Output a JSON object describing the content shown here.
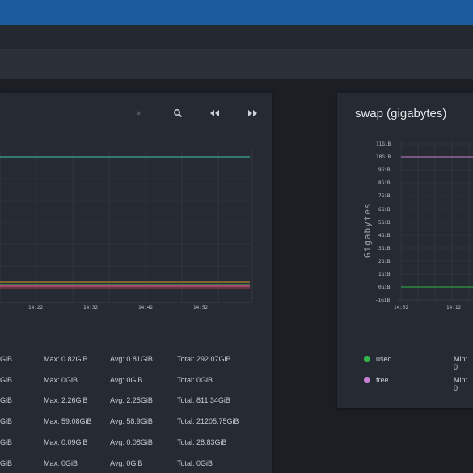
{
  "left_panel": {
    "x_ticks": [
      "14:22",
      "14:32",
      "14:42",
      "14:52"
    ],
    "stats": [
      {
        "first": "GiB",
        "max": "Max: 0.82GiB",
        "avg": "Avg: 0.81GiB",
        "total": "Total: 292.07GiB"
      },
      {
        "first": "GiB",
        "max": "Max: 0GiB",
        "avg": "Avg: 0GiB",
        "total": "Total: 0GiB"
      },
      {
        "first": "GiB",
        "max": "Max: 2.26GiB",
        "avg": "Avg: 2.25GiB",
        "total": "Total: 811.34GiB"
      },
      {
        "first": "GiB",
        "max": "Max: 59.08GiB",
        "avg": "Avg: 58.9GiB",
        "total": "Total: 21205.75GiB"
      },
      {
        "first": "GiB",
        "max": "Max: 0.09GiB",
        "avg": "Avg: 0.08GiB",
        "total": "Total: 28.83GiB"
      },
      {
        "first": "GiB",
        "max": "Max: 0GiB",
        "avg": "Avg: 0GiB",
        "total": "Total: 0GiB"
      }
    ],
    "colors": {
      "teal": "#3ec9a7",
      "orange": "#d8a02c",
      "green": "#5cc25a",
      "pink": "#e45b9d",
      "grid_red": "#5a3a3a",
      "grid": "#3a4048"
    }
  },
  "right_panel": {
    "title": "swap (gigabytes)",
    "ylabel": "Gigabytes",
    "y_ticks": [
      "11GiB",
      "10GiB",
      "9GiB",
      "8GiB",
      "7GiB",
      "6GiB",
      "5GiB",
      "4GiB",
      "3GiB",
      "2GiB",
      "1GiB",
      "0GiB",
      "-1GiB"
    ],
    "x_ticks": [
      "14:02",
      "14:12"
    ],
    "legend": [
      {
        "name": "used",
        "color": "#33b54a",
        "min": "Min: 0"
      },
      {
        "name": "free",
        "color": "#c97fd3",
        "min": "Min: 0"
      }
    ]
  },
  "chart_data": [
    {
      "type": "line",
      "x": [
        "14:22",
        "14:32",
        "14:42",
        "14:52"
      ],
      "series": [
        {
          "values": [
            0.81,
            0.81,
            0.81,
            0.81
          ]
        },
        {
          "values": [
            0,
            0,
            0,
            0
          ]
        },
        {
          "values": [
            2.25,
            2.25,
            2.25,
            2.25
          ]
        },
        {
          "values": [
            58.9,
            58.9,
            58.9,
            58.9
          ]
        },
        {
          "values": [
            0.08,
            0.08,
            0.08,
            0.08
          ]
        },
        {
          "values": [
            0,
            0,
            0,
            0
          ]
        }
      ]
    },
    {
      "type": "line",
      "title": "swap (gigabytes)",
      "ylabel": "Gigabytes",
      "ylim": [
        -1,
        11
      ],
      "x": [
        "14:02",
        "14:12"
      ],
      "series": [
        {
          "name": "used",
          "values": [
            0,
            0
          ]
        },
        {
          "name": "free",
          "values": [
            10,
            10
          ]
        }
      ],
      "grid": true
    }
  ]
}
